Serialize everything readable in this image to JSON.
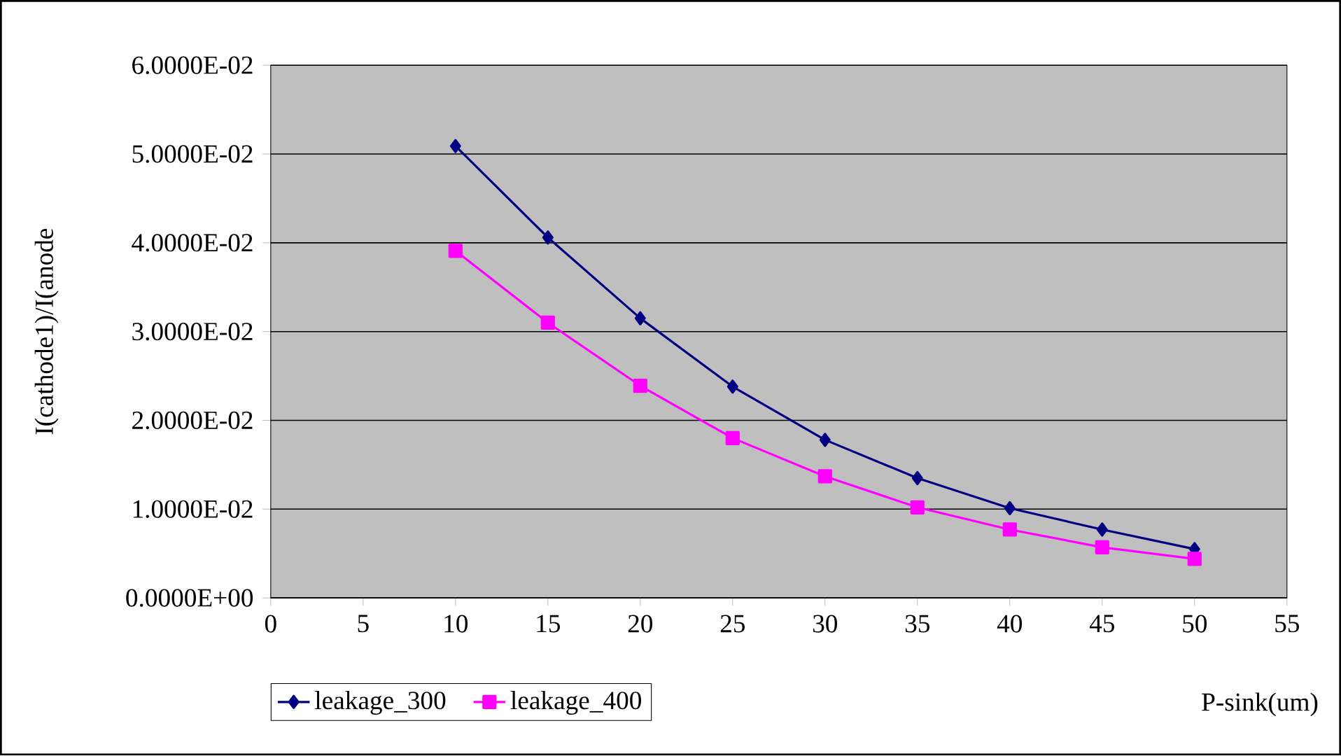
{
  "chart_data": {
    "type": "line",
    "xlabel": "P-sink(um)",
    "ylabel": "I(cathode1)/I(anode",
    "x": [
      10,
      15,
      20,
      25,
      30,
      35,
      40,
      45,
      50
    ],
    "series": [
      {
        "name": "leakage_300",
        "color": "#000080",
        "marker": "diamond",
        "values": [
          0.0509,
          0.0406,
          0.0315,
          0.0238,
          0.0178,
          0.0135,
          0.0101,
          0.0077,
          0.0055
        ]
      },
      {
        "name": "leakage_400",
        "color": "#ff00ff",
        "marker": "square",
        "values": [
          0.0391,
          0.031,
          0.0239,
          0.018,
          0.0137,
          0.0102,
          0.0077,
          0.0057,
          0.0044
        ]
      }
    ],
    "xlim": [
      0,
      55
    ],
    "xticks": [
      0,
      5,
      10,
      15,
      20,
      25,
      30,
      35,
      40,
      45,
      50,
      55
    ],
    "ylim": [
      0,
      0.06
    ],
    "yticks": [
      {
        "value": 0,
        "label": "0.0000E+00"
      },
      {
        "value": 0.01,
        "label": "1.0000E-02"
      },
      {
        "value": 0.02,
        "label": "2.0000E-02"
      },
      {
        "value": 0.03,
        "label": "3.0000E-02"
      },
      {
        "value": 0.04,
        "label": "4.0000E-02"
      },
      {
        "value": 0.05,
        "label": "5.0000E-02"
      },
      {
        "value": 0.06,
        "label": "6.0000E-02"
      }
    ],
    "grid": "y",
    "legend": "bottom left",
    "line_style": "solid"
  }
}
